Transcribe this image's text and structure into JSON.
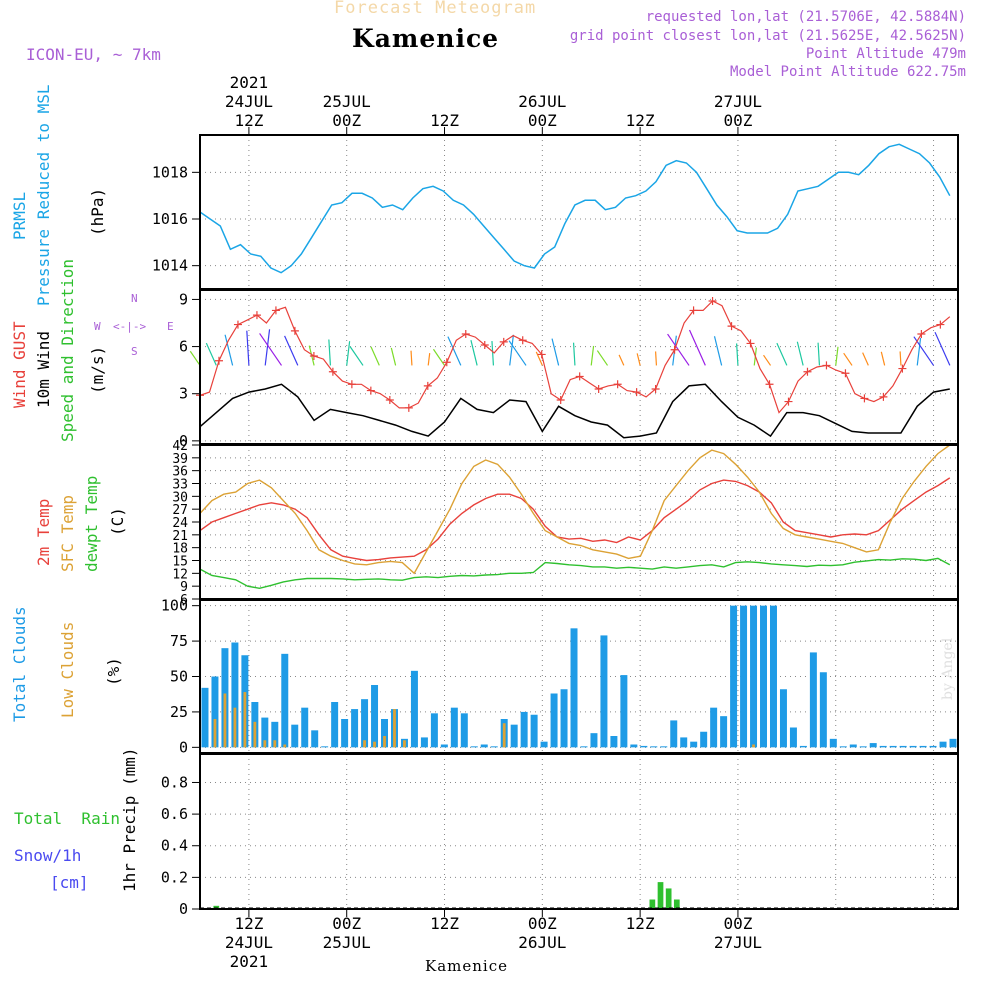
{
  "header": {
    "title": "Forecast Meteogram",
    "place": "Kamenice",
    "model": "ICON-EU, ~ 7km",
    "requested": "requested lon,lat (21.5706E, 42.5884N)",
    "gridpoint": "grid point closest lon,lat (21.5625E, 42.5625N)",
    "point_alt": "Point Altitude 479m",
    "model_alt": "Model Point Altitude 622.75m",
    "footer_place": "Kamenice",
    "watermark": "by Angel"
  },
  "time_axis": {
    "start_label": "24JUL 06Z 2021",
    "hours_total": 93,
    "top_labels": [
      {
        "hour": 6,
        "lines": [
          "2021",
          "24JUL",
          "12Z"
        ]
      },
      {
        "hour": 18,
        "lines": [
          "25JUL",
          "00Z"
        ]
      },
      {
        "hour": 30,
        "lines": [
          "12Z"
        ]
      },
      {
        "hour": 42,
        "lines": [
          "26JUL",
          "00Z"
        ]
      },
      {
        "hour": 54,
        "lines": [
          "12Z"
        ]
      },
      {
        "hour": 66,
        "lines": [
          "27JUL",
          "00Z"
        ]
      }
    ],
    "bottom_labels": [
      {
        "hour": 6,
        "lines": [
          "12Z",
          "24JUL",
          "2021"
        ]
      },
      {
        "hour": 18,
        "lines": [
          "00Z",
          "25JUL"
        ]
      },
      {
        "hour": 30,
        "lines": [
          "12Z"
        ]
      },
      {
        "hour": 42,
        "lines": [
          "00Z",
          "26JUL"
        ]
      },
      {
        "hour": 54,
        "lines": [
          "12Z"
        ]
      },
      {
        "hour": 66,
        "lines": [
          "00Z",
          "27JUL"
        ]
      }
    ]
  },
  "colors": {
    "pressure": "#1aa5e6",
    "gust": "#e8413b",
    "wind": "#000000",
    "sfc_temp": "#dca235",
    "t2m": "#e8413b",
    "dewpt": "#2fc02f",
    "total_cloud": "#1e9be6",
    "low_cloud": "#dca235",
    "rain": "#2fc02f",
    "snow": "#4a4af0",
    "meta": "#a95fd6",
    "title_faint": "#f4d8a8"
  },
  "chart_data": [
    {
      "type": "line",
      "panel": "pressure",
      "title": "PRMSL Pressure Reduced to MSL",
      "ylabel_lines": [
        "PRMSL",
        "Pressure Reduced to MSL"
      ],
      "unit": "(hPa)",
      "ylim": [
        1013,
        1019.6
      ],
      "yticks": [
        1014,
        1016,
        1018
      ],
      "series": [
        {
          "name": "PRMSL",
          "values": [
            1016.3,
            1016.0,
            1015.7,
            1014.7,
            1014.9,
            1014.5,
            1014.4,
            1013.9,
            1013.7,
            1014.0,
            1014.5,
            1015.2,
            1015.9,
            1016.6,
            1016.7,
            1017.1,
            1017.1,
            1016.9,
            1016.5,
            1016.6,
            1016.4,
            1016.9,
            1017.3,
            1017.4,
            1017.2,
            1016.8,
            1016.6,
            1016.2,
            1015.7,
            1015.2,
            1014.7,
            1014.2,
            1014.0,
            1013.9,
            1014.5,
            1014.8,
            1015.8,
            1016.6,
            1016.8,
            1016.8,
            1016.4,
            1016.5,
            1016.9,
            1017.0,
            1017.2,
            1017.6,
            1018.3,
            1018.5,
            1018.4,
            1018.0,
            1017.3,
            1016.6,
            1016.1,
            1015.5,
            1015.4,
            1015.4,
            1015.4,
            1015.6,
            1016.2,
            1017.2,
            1017.3,
            1017.4,
            1017.7,
            1018.0,
            1018.0,
            1017.9,
            1018.3,
            1018.8,
            1019.1,
            1019.2,
            1019.0,
            1018.8,
            1018.4,
            1017.8,
            1017.0
          ]
        }
      ]
    },
    {
      "type": "line",
      "panel": "wind",
      "title": "Wind GUST / 10m Wind Speed and Direction",
      "ylabels": [
        "Wind GUST",
        "10m Wind",
        "Speed and Direction"
      ],
      "unit": "(m/s)",
      "compass": {
        "n": "N",
        "s": "S",
        "w": "W",
        "e": "E",
        "rose": "<-|->"
      },
      "ylim": [
        -0.2,
        9.6
      ],
      "yticks": [
        0,
        3,
        6,
        9
      ],
      "series": [
        {
          "name": "Wind GUST",
          "values": [
            2.9,
            3.1,
            5.1,
            6.4,
            7.4,
            7.7,
            8.0,
            7.5,
            8.3,
            8.5,
            7.0,
            5.8,
            5.4,
            5.2,
            4.4,
            3.8,
            3.6,
            3.6,
            3.2,
            3.0,
            2.6,
            2.1,
            2.1,
            2.4,
            3.5,
            4.0,
            5.0,
            6.4,
            6.8,
            6.6,
            6.1,
            5.6,
            6.3,
            6.7,
            6.4,
            6.2,
            5.5,
            3.0,
            2.6,
            3.9,
            4.1,
            3.7,
            3.3,
            3.5,
            3.6,
            3.2,
            3.1,
            2.8,
            3.3,
            4.8,
            5.8,
            7.5,
            8.3,
            8.3,
            8.9,
            8.6,
            7.3,
            7.0,
            6.2,
            4.6,
            3.6,
            1.8,
            2.5,
            3.8,
            4.4,
            4.7,
            4.8,
            4.5,
            4.3,
            3.0,
            2.7,
            2.5,
            2.8,
            3.5,
            4.6,
            5.8,
            6.8,
            7.2,
            7.4,
            7.9
          ]
        },
        {
          "name": "10m Wind",
          "values": [
            0.9,
            1.8,
            2.7,
            3.1,
            3.3,
            3.6,
            2.8,
            1.3,
            2.0,
            1.8,
            1.6,
            1.3,
            1.0,
            0.6,
            0.3,
            1.2,
            2.7,
            2.0,
            1.8,
            2.6,
            2.5,
            0.6,
            2.2,
            1.6,
            1.2,
            1.0,
            0.2,
            0.3,
            0.5,
            2.5,
            3.5,
            3.6,
            2.5,
            1.5,
            1.0,
            0.3,
            1.8,
            1.8,
            1.6,
            1.1,
            0.6,
            0.5,
            0.5,
            0.5,
            2.2,
            3.1,
            3.3
          ]
        }
      ],
      "gust_samples": 80,
      "wind_samples": 47
    },
    {
      "type": "line",
      "panel": "temperature",
      "title": "2m Temp / SFC Temp / dewpt Temp",
      "ylabels": [
        "2m Temp",
        "SFC Temp",
        "dewpt Temp"
      ],
      "unit": "(C)",
      "ylim": [
        6,
        42
      ],
      "yticks": [
        6,
        9,
        12,
        15,
        18,
        21,
        24,
        27,
        30,
        33,
        36,
        39,
        42
      ],
      "series": [
        {
          "name": "2m Temp",
          "values": [
            22.0,
            24.0,
            25.0,
            26.0,
            27.0,
            28.0,
            28.5,
            28.0,
            27.0,
            25.0,
            21.0,
            17.5,
            16.0,
            15.5,
            15.0,
            15.2,
            15.6,
            15.8,
            16.0,
            17.5,
            20.0,
            23.5,
            26.0,
            28.0,
            29.5,
            30.5,
            30.5,
            29.5,
            27.0,
            23.0,
            20.5,
            20.0,
            20.2,
            19.5,
            19.8,
            19.2,
            20.5,
            19.8,
            22.0,
            25.0,
            27.0,
            29.0,
            31.5,
            33.0,
            33.8,
            33.5,
            32.5,
            31.0,
            28.5,
            24.0,
            22.0,
            21.5,
            21.0,
            20.5,
            21.0,
            21.2,
            21.0,
            22.0,
            24.5,
            27.0,
            29.0,
            31.0,
            32.5,
            34.3
          ]
        },
        {
          "name": "SFC Temp",
          "values": [
            26.0,
            29.0,
            30.5,
            31.0,
            33.0,
            33.8,
            32.0,
            29.0,
            26.0,
            22.0,
            17.5,
            16.0,
            15.0,
            14.2,
            14.0,
            14.5,
            14.8,
            14.5,
            12.0,
            17.0,
            22.0,
            27.0,
            33.0,
            37.0,
            38.5,
            37.5,
            34.5,
            30.5,
            26.0,
            22.0,
            20.5,
            19.0,
            18.5,
            17.5,
            17.0,
            16.5,
            15.5,
            16.0,
            22.0,
            29.0,
            32.5,
            36.0,
            39.0,
            40.8,
            40.0,
            37.5,
            34.5,
            31.0,
            26.0,
            22.5,
            21.0,
            20.5,
            20.0,
            19.5,
            19.0,
            18.0,
            17.0,
            17.5,
            24.0,
            29.5,
            33.5,
            37.0,
            40.0,
            42.0
          ]
        },
        {
          "name": "dewpt Temp",
          "values": [
            13.0,
            11.5,
            11.0,
            10.5,
            9.0,
            8.5,
            9.2,
            10.0,
            10.5,
            10.8,
            10.8,
            10.8,
            10.7,
            10.5,
            10.6,
            10.7,
            10.5,
            10.4,
            11.0,
            11.2,
            11.0,
            11.3,
            11.5,
            11.4,
            11.6,
            11.7,
            12.0,
            12.0,
            12.2,
            14.5,
            14.3,
            14.0,
            13.8,
            13.5,
            13.5,
            13.2,
            13.4,
            13.2,
            13.0,
            13.5,
            13.2,
            13.5,
            13.8,
            14.0,
            13.5,
            14.5,
            14.7,
            14.5,
            14.2,
            14.0,
            13.8,
            13.6,
            13.9,
            13.8,
            14.0,
            14.6,
            14.9,
            15.2,
            15.1,
            15.4,
            15.3,
            15.0,
            15.5,
            14.0
          ]
        }
      ]
    },
    {
      "type": "bar",
      "panel": "clouds",
      "title": "Total Clouds / Low Clouds",
      "ylabels": [
        "Total Clouds",
        "Low Clouds"
      ],
      "unit": "(%)",
      "ylim": [
        -4,
        104
      ],
      "yticks": [
        0,
        25,
        50,
        75,
        100
      ],
      "series": [
        {
          "name": "Total Clouds",
          "values": [
            42,
            50,
            70,
            74,
            65,
            32,
            21,
            18,
            66,
            16,
            28,
            12,
            0,
            32,
            20,
            27,
            34,
            44,
            20,
            27,
            6,
            54,
            7,
            24,
            2,
            28,
            24,
            0,
            2,
            0,
            20,
            16,
            25,
            23,
            4,
            38,
            41,
            84,
            0,
            10,
            79,
            8,
            51,
            2,
            1,
            0,
            0,
            19,
            7,
            4,
            11,
            28,
            22,
            100,
            100,
            100,
            100,
            100,
            41,
            14,
            1,
            67,
            53,
            6,
            0,
            2,
            0,
            3,
            1,
            1,
            1,
            1,
            1,
            1,
            4,
            6
          ]
        },
        {
          "name": "Low Clouds",
          "values": [
            0,
            20,
            38,
            28,
            39,
            18,
            5,
            5,
            2,
            0,
            0,
            0,
            0,
            0,
            0,
            0,
            5,
            4,
            8,
            27,
            5,
            0,
            0,
            0,
            0,
            0,
            0,
            0,
            0,
            0,
            17,
            0,
            0,
            0,
            0,
            0,
            0,
            0,
            0,
            0,
            0,
            0,
            0,
            0,
            0,
            0,
            0,
            0,
            0,
            0,
            0,
            0,
            0,
            0,
            0,
            2,
            0,
            0,
            0,
            0,
            0,
            0,
            0,
            0,
            0,
            0,
            0,
            0,
            0,
            0,
            0,
            0,
            0,
            0,
            0,
            0
          ]
        }
      ]
    },
    {
      "type": "bar",
      "panel": "precip",
      "title": "1hr Precip (mm)",
      "legend": {
        "rain": "Total  Rain",
        "snow": "Snow/1h",
        "snow_unit": "[cm]"
      },
      "ylabel": "1hr Precip (mm)",
      "ylim": [
        0,
        0.98
      ],
      "yticks": [
        0,
        0.2,
        0.4,
        0.6,
        0.8
      ],
      "ytick_labels": [
        "0",
        "0.2",
        "0.4",
        "0.6",
        "0.8"
      ],
      "series": [
        {
          "name": "Total Rain",
          "points": [
            [
              2,
              0.02
            ],
            [
              55.5,
              0.06
            ],
            [
              56.5,
              0.17
            ],
            [
              57.5,
              0.13
            ],
            [
              58.5,
              0.06
            ]
          ]
        }
      ]
    }
  ]
}
